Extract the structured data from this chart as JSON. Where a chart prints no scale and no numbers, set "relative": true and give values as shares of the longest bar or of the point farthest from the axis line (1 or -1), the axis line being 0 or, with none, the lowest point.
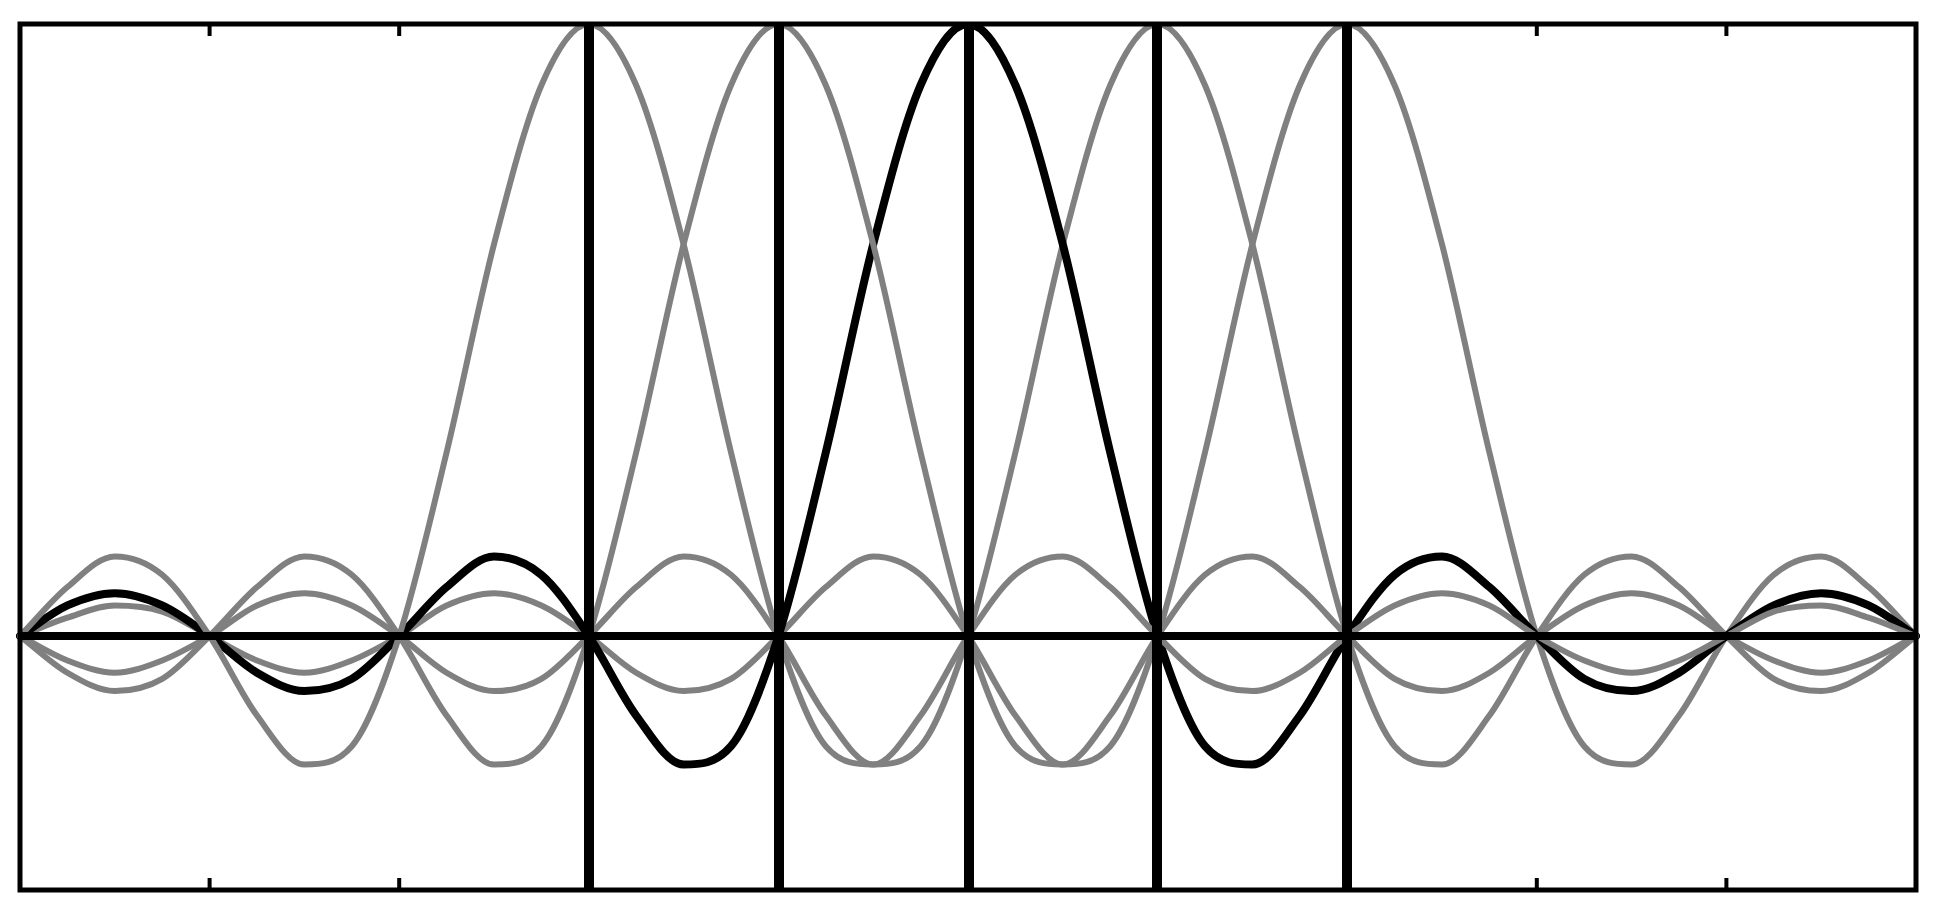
{
  "chart_data": {
    "type": "line",
    "relative": true,
    "legend": false,
    "marker": "none",
    "line_style": "solid",
    "categories": [
      null,
      null,
      null,
      null,
      null,
      null,
      null,
      null,
      null,
      null,
      null,
      null,
      null,
      null,
      null,
      null,
      null,
      null,
      null,
      null,
      null,
      null,
      null,
      null,
      null,
      null,
      null,
      null,
      null,
      null,
      null,
      null,
      null,
      null,
      null,
      null,
      null,
      null,
      null,
      null,
      null
    ],
    "series": [
      {
        "color": "#808080",
        "values": [
          0,
          0.08,
          0.13,
          0.1,
          0,
          -0.13,
          -0.21,
          -0.18,
          0,
          0.3,
          0.64,
          0.9,
          1,
          0.9,
          0.64,
          0.3,
          0,
          -0.18,
          -0.21,
          -0.13,
          0,
          0.1,
          0.13,
          0.08,
          0,
          -0.07,
          -0.09,
          -0.06,
          0,
          0.05,
          0.07,
          0.05,
          0,
          -0.04,
          -0.06,
          -0.04,
          0,
          0.04,
          0.05,
          0.03,
          0
        ]
      },
      {
        "color": "#808080",
        "values": [
          0,
          -0.06,
          -0.09,
          -0.07,
          0,
          0.08,
          0.13,
          0.1,
          0,
          -0.13,
          -0.21,
          -0.18,
          0,
          0.3,
          0.64,
          0.9,
          1,
          0.9,
          0.64,
          0.3,
          0,
          -0.18,
          -0.21,
          -0.13,
          0,
          0.1,
          0.13,
          0.08,
          0,
          -0.07,
          -0.09,
          -0.06,
          0,
          0.05,
          0.07,
          0.05,
          0,
          -0.04,
          -0.06,
          -0.04,
          0
        ]
      },
      {
        "color": "#000000",
        "values": [
          0,
          0.05,
          0.07,
          0.05,
          0,
          -0.06,
          -0.09,
          -0.07,
          0,
          0.08,
          0.13,
          0.1,
          0,
          -0.13,
          -0.21,
          -0.18,
          0,
          0.3,
          0.64,
          0.9,
          1,
          0.9,
          0.64,
          0.3,
          0,
          -0.18,
          -0.21,
          -0.13,
          0,
          0.1,
          0.13,
          0.08,
          0,
          -0.07,
          -0.09,
          -0.06,
          0,
          0.05,
          0.07,
          0.05,
          0
        ]
      },
      {
        "color": "#808080",
        "values": [
          0,
          -0.04,
          -0.06,
          -0.04,
          0,
          0.05,
          0.07,
          0.05,
          0,
          -0.06,
          -0.09,
          -0.07,
          0,
          0.08,
          0.13,
          0.1,
          0,
          -0.13,
          -0.21,
          -0.18,
          0,
          0.3,
          0.64,
          0.9,
          1,
          0.9,
          0.64,
          0.3,
          0,
          -0.18,
          -0.21,
          -0.13,
          0,
          0.1,
          0.13,
          0.08,
          0,
          -0.07,
          -0.09,
          -0.06,
          0
        ]
      },
      {
        "color": "#808080",
        "values": [
          0,
          0.03,
          0.05,
          0.04,
          0,
          -0.04,
          -0.06,
          -0.04,
          0,
          0.05,
          0.07,
          0.05,
          0,
          -0.06,
          -0.09,
          -0.07,
          0,
          0.08,
          0.13,
          0.1,
          0,
          -0.13,
          -0.21,
          -0.18,
          0,
          0.3,
          0.64,
          0.9,
          1,
          0.9,
          0.64,
          0.3,
          0,
          -0.18,
          -0.21,
          -0.13,
          0,
          0.1,
          0.13,
          0.08,
          0
        ]
      }
    ]
  }
}
